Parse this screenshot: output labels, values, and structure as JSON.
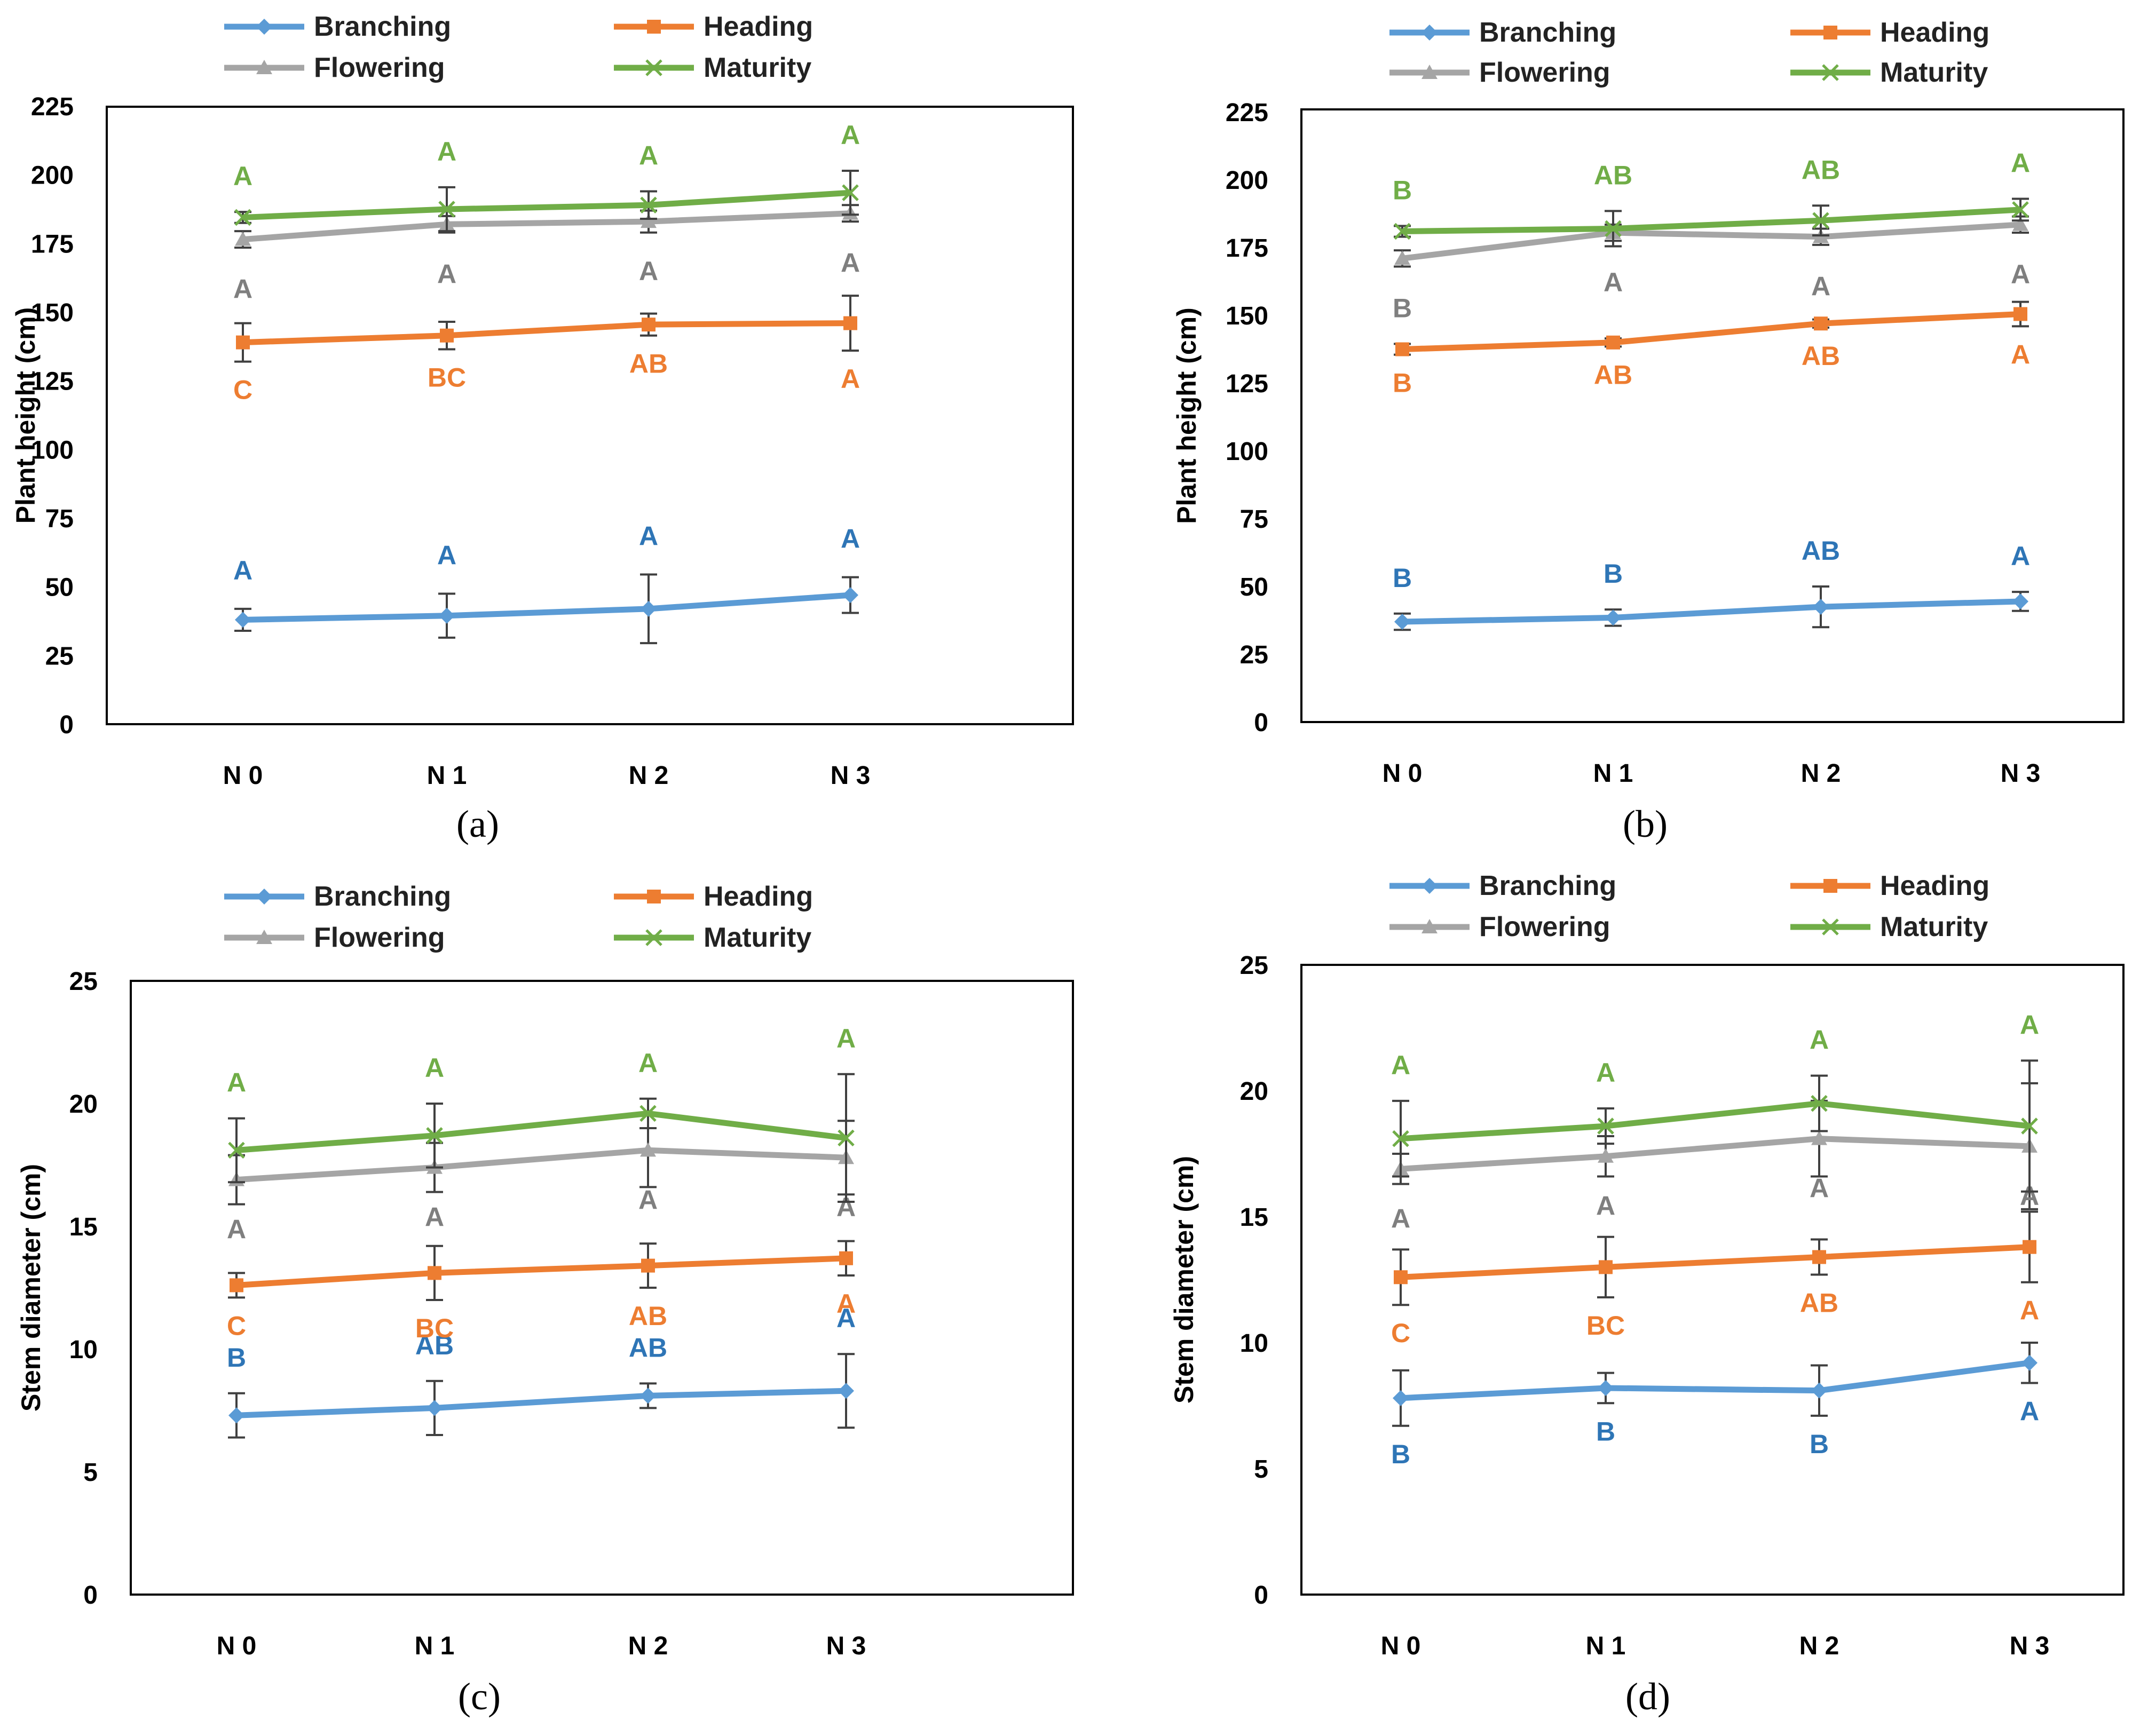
{
  "colors": {
    "Branching": "#5b9bd5",
    "Heading": "#ed7d31",
    "Flowering": "#a5a5a5",
    "Maturity": "#70ad47",
    "Branching_letter": "#2e75b6",
    "Heading_letter": "#ed7d31",
    "Flowering_letter": "#7f7f7f",
    "Maturity_letter": "#70ad47",
    "axis": "#000000",
    "error_bar": "#404040"
  },
  "chart_data": [
    {
      "panel": "(a)",
      "type": "line",
      "title": "",
      "xlabel": "",
      "ylabel": "Plant height (cm)",
      "categories": [
        "N 0",
        "N 1",
        "N 2",
        "N 3"
      ],
      "ylim": [
        0,
        225
      ],
      "yticks": [
        0,
        25,
        50,
        75,
        100,
        125,
        150,
        175,
        200,
        225
      ],
      "legend": [
        "Branching",
        "Heading",
        "Flowering",
        "Maturity"
      ],
      "legend_position": "top",
      "grid": false,
      "series": [
        {
          "name": "Branching",
          "marker": "diamond",
          "values": [
            38,
            39.5,
            42,
            47
          ],
          "errors": [
            4,
            8,
            12.5,
            6.5
          ],
          "letters": [
            "A",
            "A",
            "A",
            "A"
          ]
        },
        {
          "name": "Heading",
          "marker": "square",
          "values": [
            139,
            141.5,
            145.5,
            146
          ],
          "errors": [
            7,
            5,
            4,
            10
          ],
          "letters": [
            "C",
            "BC",
            "AB",
            "A"
          ]
        },
        {
          "name": "Flowering",
          "marker": "triangle",
          "values": [
            176.5,
            182,
            183,
            186
          ],
          "errors": [
            3,
            3,
            4,
            3
          ],
          "letters": [
            "A",
            "A",
            "A",
            "A"
          ]
        },
        {
          "name": "Maturity",
          "marker": "x",
          "values": [
            184.5,
            187.5,
            189,
            193.5
          ],
          "errors": [
            2,
            8,
            5,
            8
          ],
          "letters": [
            "A",
            "A",
            "A",
            "A"
          ]
        }
      ]
    },
    {
      "panel": "(b)",
      "type": "line",
      "title": "",
      "xlabel": "",
      "ylabel": "Plant height (cm)",
      "categories": [
        "N 0",
        "N 1",
        "N 2",
        "N 3"
      ],
      "ylim": [
        0,
        225
      ],
      "yticks": [
        0,
        25,
        50,
        75,
        100,
        125,
        150,
        175,
        200,
        225
      ],
      "legend": [
        "Branching",
        "Heading",
        "Flowering",
        "Maturity"
      ],
      "legend_position": "top",
      "grid": false,
      "series": [
        {
          "name": "Branching",
          "marker": "diamond",
          "values": [
            37,
            38.5,
            42.5,
            44.5
          ],
          "errors": [
            3,
            3,
            7.5,
            3.5
          ],
          "letters": [
            "B",
            "B",
            "AB",
            "A"
          ]
        },
        {
          "name": "Heading",
          "marker": "square",
          "values": [
            137.5,
            140,
            147,
            150.5
          ],
          "errors": [
            2,
            1.5,
            1.5,
            4.5
          ],
          "letters": [
            "B",
            "AB",
            "AB",
            "A"
          ]
        },
        {
          "name": "Flowering",
          "marker": "triangle",
          "values": [
            171,
            180.5,
            179,
            183.5
          ],
          "errors": [
            3,
            3,
            3,
            3
          ],
          "letters": [
            "B",
            "A",
            "A",
            "A"
          ]
        },
        {
          "name": "Maturity",
          "marker": "x",
          "values": [
            181,
            182,
            185,
            189
          ],
          "errors": [
            2,
            6.5,
            5.5,
            4
          ],
          "letters": [
            "B",
            "AB",
            "AB",
            "A"
          ]
        }
      ]
    },
    {
      "panel": "(c)",
      "type": "line",
      "title": "",
      "xlabel": "",
      "ylabel": "Stem diameter (cm)",
      "categories": [
        "N 0",
        "N 1",
        "N 2",
        "N 3"
      ],
      "ylim": [
        0,
        25
      ],
      "yticks": [
        0,
        5,
        10,
        15,
        20,
        25
      ],
      "legend": [
        "Branching",
        "Heading",
        "Flowering",
        "Maturity"
      ],
      "legend_position": "top",
      "grid": false,
      "series": [
        {
          "name": "Branching",
          "marker": "diamond",
          "values": [
            7.3,
            7.6,
            8.1,
            8.3
          ],
          "errors": [
            0.9,
            1.1,
            0.5,
            1.5
          ],
          "letters": [
            "B",
            "AB",
            "AB",
            "A"
          ]
        },
        {
          "name": "Heading",
          "marker": "square",
          "values": [
            12.6,
            13.1,
            13.4,
            13.7
          ],
          "errors": [
            0.5,
            1.1,
            0.9,
            0.7
          ],
          "letters": [
            "C",
            "BC",
            "AB",
            "A"
          ]
        },
        {
          "name": "Flowering",
          "marker": "triangle",
          "values": [
            16.9,
            17.4,
            18.1,
            17.8
          ],
          "errors": [
            1.0,
            1.0,
            1.5,
            1.5
          ],
          "letters": [
            "A",
            "A",
            "A",
            "A"
          ]
        },
        {
          "name": "Maturity",
          "marker": "x",
          "values": [
            18.1,
            18.7,
            19.6,
            18.6
          ],
          "errors": [
            1.3,
            1.3,
            0.6,
            2.6
          ],
          "letters": [
            "A",
            "A",
            "A",
            "A"
          ]
        }
      ]
    },
    {
      "panel": "(d)",
      "type": "line",
      "title": "",
      "xlabel": "",
      "ylabel": "Stem diameter (cm)",
      "categories": [
        "N 0",
        "N 1",
        "N 2",
        "N 3"
      ],
      "ylim": [
        0,
        25
      ],
      "yticks": [
        0,
        5,
        10,
        15,
        20,
        25
      ],
      "legend": [
        "Branching",
        "Heading",
        "Flowering",
        "Maturity"
      ],
      "legend_position": "top",
      "grid": false,
      "series": [
        {
          "name": "Branching",
          "marker": "diamond",
          "values": [
            7.8,
            8.2,
            8.1,
            9.2
          ],
          "errors": [
            1.1,
            0.6,
            1.0,
            0.8
          ],
          "letters": [
            "B",
            "B",
            "B",
            "A"
          ]
        },
        {
          "name": "Heading",
          "marker": "square",
          "values": [
            12.6,
            13.0,
            13.4,
            13.8
          ],
          "errors": [
            1.1,
            1.2,
            0.7,
            1.4
          ],
          "letters": [
            "C",
            "BC",
            "AB",
            "A"
          ]
        },
        {
          "name": "Flowering",
          "marker": "triangle",
          "values": [
            16.9,
            17.4,
            18.1,
            17.8
          ],
          "errors": [
            0.6,
            0.8,
            1.5,
            2.5
          ],
          "letters": [
            "A",
            "A",
            "A",
            "A"
          ]
        },
        {
          "name": "Maturity",
          "marker": "x",
          "values": [
            18.1,
            18.6,
            19.5,
            18.6
          ],
          "errors": [
            1.5,
            0.7,
            1.1,
            2.6
          ],
          "letters": [
            "A",
            "A",
            "A",
            "A"
          ]
        }
      ]
    }
  ]
}
